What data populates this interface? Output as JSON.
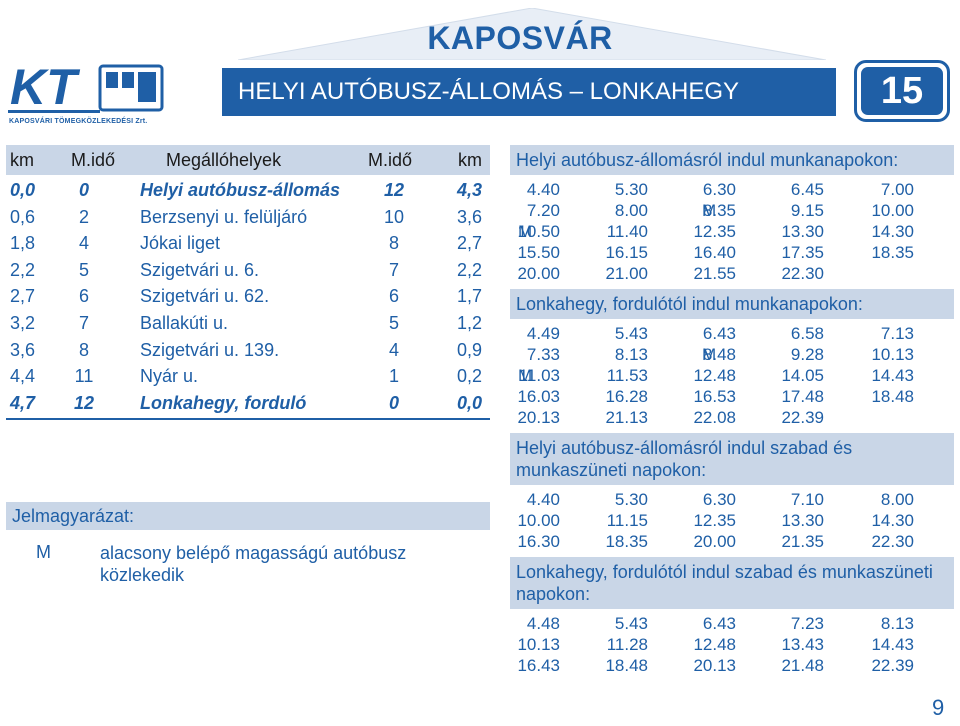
{
  "header": {
    "city": "KAPOSVÁR",
    "title": "HELYI AUTÓBUSZ-ÁLLOMÁS – LONKAHEGY",
    "route_number": "15",
    "logo_text": "KT",
    "logo_subtitle": "KAPOSVÁRI TÖMEGKÖZLEKEDÉSI Zrt."
  },
  "stops": {
    "headers": [
      "km",
      "M.idő",
      "Megállóhelyek",
      "M.idő",
      "km"
    ],
    "rows": [
      {
        "km": "0,0",
        "t1": "0",
        "name": "Helyi autóbusz-állomás",
        "t2": "12",
        "km2": "4,3",
        "bold": true
      },
      {
        "km": "0,6",
        "t1": "2",
        "name": "Berzsenyi u. felüljáró",
        "t2": "10",
        "km2": "3,6",
        "bold": false
      },
      {
        "km": "1,8",
        "t1": "4",
        "name": "Jókai liget",
        "t2": "8",
        "km2": "2,7",
        "bold": false
      },
      {
        "km": "2,2",
        "t1": "5",
        "name": "Szigetvári u. 6.",
        "t2": "7",
        "km2": "2,2",
        "bold": false
      },
      {
        "km": "2,7",
        "t1": "6",
        "name": "Szigetvári u. 62.",
        "t2": "6",
        "km2": "1,7",
        "bold": false
      },
      {
        "km": "3,2",
        "t1": "7",
        "name": "Ballakúti u.",
        "t2": "5",
        "km2": "1,2",
        "bold": false
      },
      {
        "km": "3,6",
        "t1": "8",
        "name": "Szigetvári u. 139.",
        "t2": "4",
        "km2": "0,9",
        "bold": false
      },
      {
        "km": "4,4",
        "t1": "11",
        "name": "Nyár u.",
        "t2": "1",
        "km2": "0,2",
        "bold": false
      },
      {
        "km": "4,7",
        "t1": "12",
        "name": "Lonkahegy, forduló",
        "t2": "0",
        "km2": "0,0",
        "bold": true
      }
    ]
  },
  "legend": {
    "title": "Jelmagyarázat:",
    "key": "M",
    "text": "alacsony belépő magasságú autóbusz közlekedik"
  },
  "schedule": [
    {
      "title": "Helyi autóbusz-állomásról indul munkanapokon:",
      "rows": [
        [
          {
            "m": "",
            "t": "4.40"
          },
          {
            "m": "",
            "t": "5.30"
          },
          {
            "m": "",
            "t": "6.30"
          },
          {
            "m": "",
            "t": "6.45"
          },
          {
            "m": "",
            "t": "7.00"
          }
        ],
        [
          {
            "m": "",
            "t": "7.20"
          },
          {
            "m": "",
            "t": "8.00"
          },
          {
            "m": "M",
            "t": "8.35"
          },
          {
            "m": "",
            "t": "9.15"
          },
          {
            "m": "",
            "t": "10.00"
          }
        ],
        [
          {
            "m": "M",
            "t": "10.50"
          },
          {
            "m": "",
            "t": "11.40"
          },
          {
            "m": "",
            "t": "12.35"
          },
          {
            "m": "",
            "t": "13.30"
          },
          {
            "m": "",
            "t": "14.30"
          }
        ],
        [
          {
            "m": "",
            "t": "15.50"
          },
          {
            "m": "",
            "t": "16.15"
          },
          {
            "m": "",
            "t": "16.40"
          },
          {
            "m": "",
            "t": "17.35"
          },
          {
            "m": "",
            "t": "18.35"
          }
        ],
        [
          {
            "m": "",
            "t": "20.00"
          },
          {
            "m": "",
            "t": "21.00"
          },
          {
            "m": "",
            "t": "21.55"
          },
          {
            "m": "",
            "t": "22.30"
          },
          {
            "m": "",
            "t": ""
          }
        ]
      ]
    },
    {
      "title": "Lonkahegy, fordulótól indul munkanapokon:",
      "rows": [
        [
          {
            "m": "",
            "t": "4.49"
          },
          {
            "m": "",
            "t": "5.43"
          },
          {
            "m": "",
            "t": "6.43"
          },
          {
            "m": "",
            "t": "6.58"
          },
          {
            "m": "",
            "t": "7.13"
          }
        ],
        [
          {
            "m": "",
            "t": "7.33"
          },
          {
            "m": "",
            "t": "8.13"
          },
          {
            "m": "M",
            "t": "8.48"
          },
          {
            "m": "",
            "t": "9.28"
          },
          {
            "m": "",
            "t": "10.13"
          }
        ],
        [
          {
            "m": "M",
            "t": "11.03"
          },
          {
            "m": "",
            "t": "11.53"
          },
          {
            "m": "",
            "t": "12.48"
          },
          {
            "m": "",
            "t": "14.05"
          },
          {
            "m": "",
            "t": "14.43"
          }
        ],
        [
          {
            "m": "",
            "t": "16.03"
          },
          {
            "m": "",
            "t": "16.28"
          },
          {
            "m": "",
            "t": "16.53"
          },
          {
            "m": "",
            "t": "17.48"
          },
          {
            "m": "",
            "t": "18.48"
          }
        ],
        [
          {
            "m": "",
            "t": "20.13"
          },
          {
            "m": "",
            "t": "21.13"
          },
          {
            "m": "",
            "t": "22.08"
          },
          {
            "m": "",
            "t": "22.39"
          },
          {
            "m": "",
            "t": ""
          }
        ]
      ]
    },
    {
      "title": "Helyi autóbusz-állomásról indul szabad és munkaszüneti napokon:",
      "rows": [
        [
          {
            "m": "",
            "t": "4.40"
          },
          {
            "m": "",
            "t": "5.30"
          },
          {
            "m": "",
            "t": "6.30"
          },
          {
            "m": "",
            "t": "7.10"
          },
          {
            "m": "",
            "t": "8.00"
          }
        ],
        [
          {
            "m": "",
            "t": "10.00"
          },
          {
            "m": "",
            "t": "11.15"
          },
          {
            "m": "",
            "t": "12.35"
          },
          {
            "m": "",
            "t": "13.30"
          },
          {
            "m": "",
            "t": "14.30"
          }
        ],
        [
          {
            "m": "",
            "t": "16.30"
          },
          {
            "m": "",
            "t": "18.35"
          },
          {
            "m": "",
            "t": "20.00"
          },
          {
            "m": "",
            "t": "21.35"
          },
          {
            "m": "",
            "t": "22.30"
          }
        ]
      ]
    },
    {
      "title": "Lonkahegy, fordulótól indul szabad és munkaszüneti napokon:",
      "rows": [
        [
          {
            "m": "",
            "t": "4.48"
          },
          {
            "m": "",
            "t": "5.43"
          },
          {
            "m": "",
            "t": "6.43"
          },
          {
            "m": "",
            "t": "7.23"
          },
          {
            "m": "",
            "t": "8.13"
          }
        ],
        [
          {
            "m": "",
            "t": "10.13"
          },
          {
            "m": "",
            "t": "11.28"
          },
          {
            "m": "",
            "t": "12.48"
          },
          {
            "m": "",
            "t": "13.43"
          },
          {
            "m": "",
            "t": "14.43"
          }
        ],
        [
          {
            "m": "",
            "t": "16.43"
          },
          {
            "m": "",
            "t": "18.48"
          },
          {
            "m": "",
            "t": "20.13"
          },
          {
            "m": "",
            "t": "21.48"
          },
          {
            "m": "",
            "t": "22.39"
          }
        ]
      ]
    }
  ],
  "page_number": "9",
  "colors": {
    "brand": "#1f5fa6",
    "band": "#c9d6e7"
  }
}
